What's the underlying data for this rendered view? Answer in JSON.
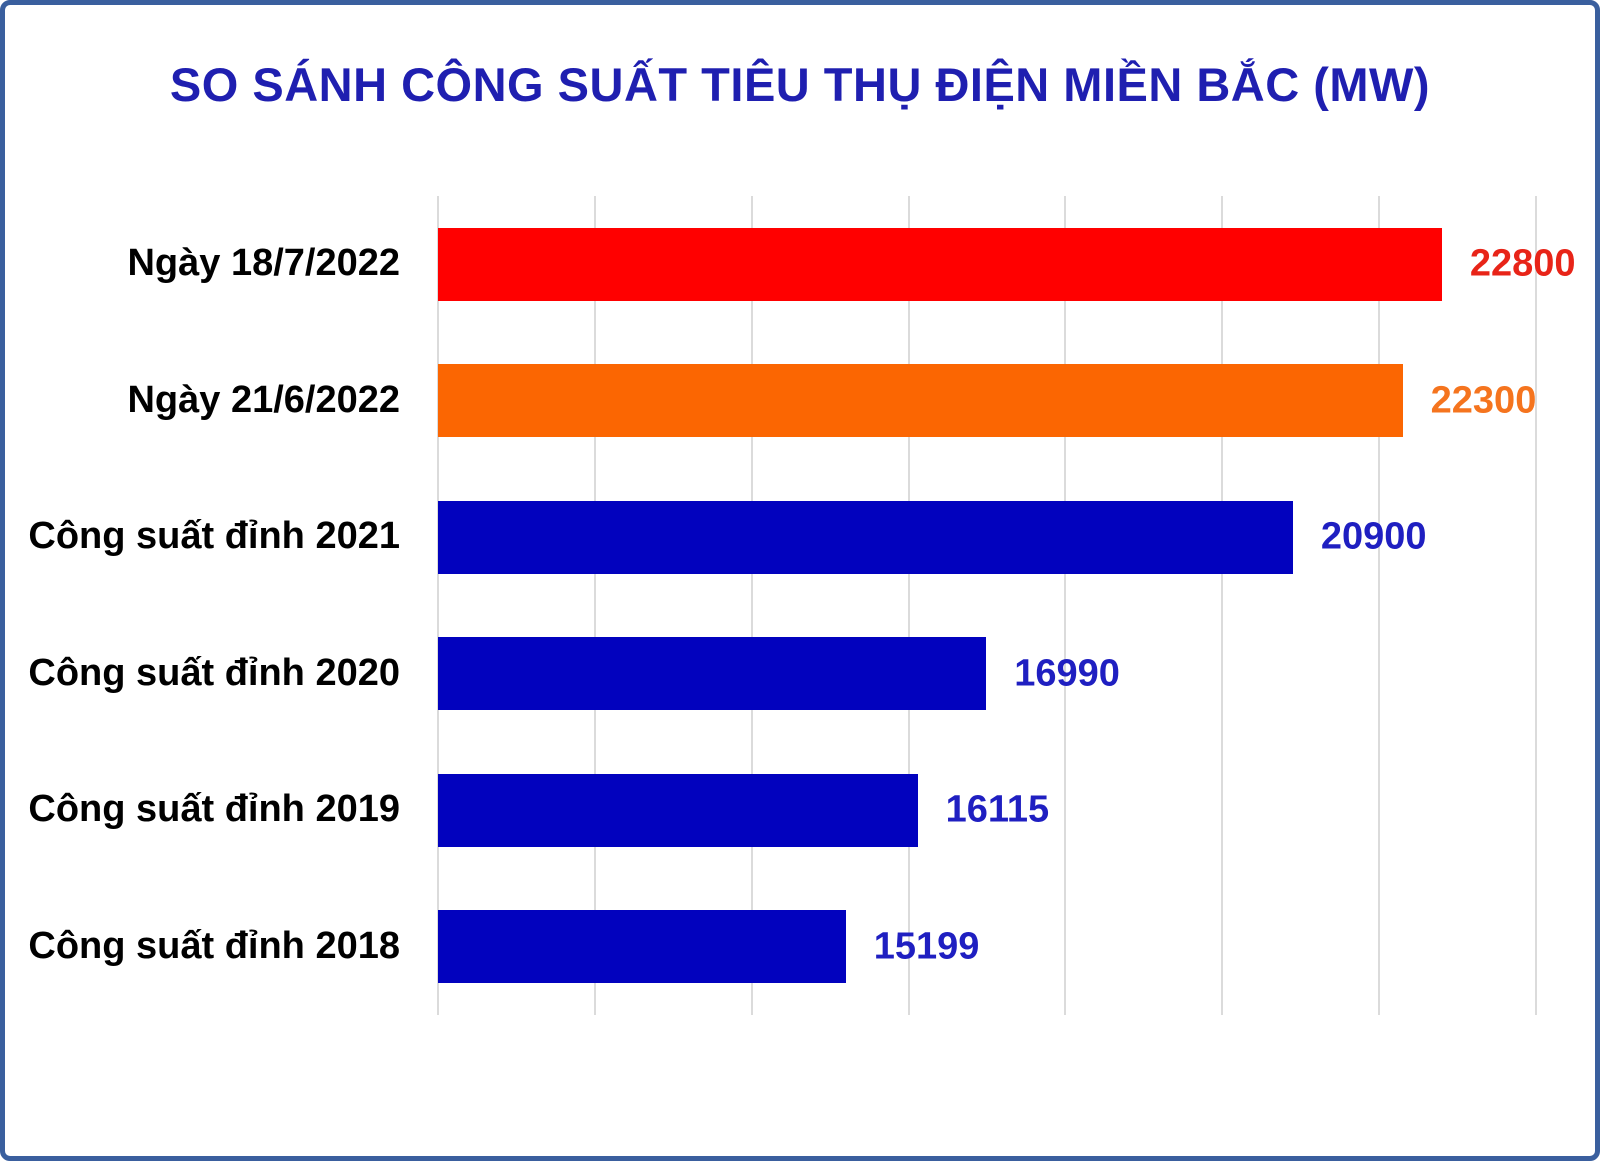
{
  "chart_data": {
    "type": "bar",
    "orientation": "horizontal",
    "title": "SO SÁNH CÔNG SUẤT TIÊU THỤ ĐIỆN MIỀN BẮC (MW)",
    "unit": "MW",
    "categories": [
      "Ngày 18/7/2022",
      "Ngày 21/6/2022",
      "Công suất đỉnh 2021",
      "Công suất đỉnh 2020",
      "Công suất đỉnh 2019",
      "Công suất đỉnh 2018"
    ],
    "values": [
      22800,
      22300,
      20900,
      16990,
      16115,
      15199
    ],
    "value_labels": [
      "22800",
      "22300",
      "20900",
      "16990",
      "16115",
      "15199"
    ],
    "bar_colors": [
      "#FF0000",
      "#FB6602",
      "#0202BE",
      "#0202BE",
      "#0202BE",
      "#0202BE"
    ],
    "value_label_colors": [
      "#E82418",
      "#F5741E",
      "#1F1FC1",
      "#1F1FC1",
      "#1F1FC1",
      "#1F1FC1"
    ],
    "xlim": [
      10000,
      24000
    ],
    "grid_step": 2000,
    "gridline_values": [
      10000,
      12000,
      14000,
      16000,
      18000,
      20000,
      22000,
      24000
    ],
    "grid": true,
    "legend_position": "none",
    "axis_tick_labels_shown": false,
    "value_labels_shown": true
  },
  "colors": {
    "title": "#1F1FB0",
    "frame_border": "#3A5F9E",
    "background": "#FFFFFF",
    "gridline": "#DBDBDB",
    "category_label": "#000000"
  }
}
